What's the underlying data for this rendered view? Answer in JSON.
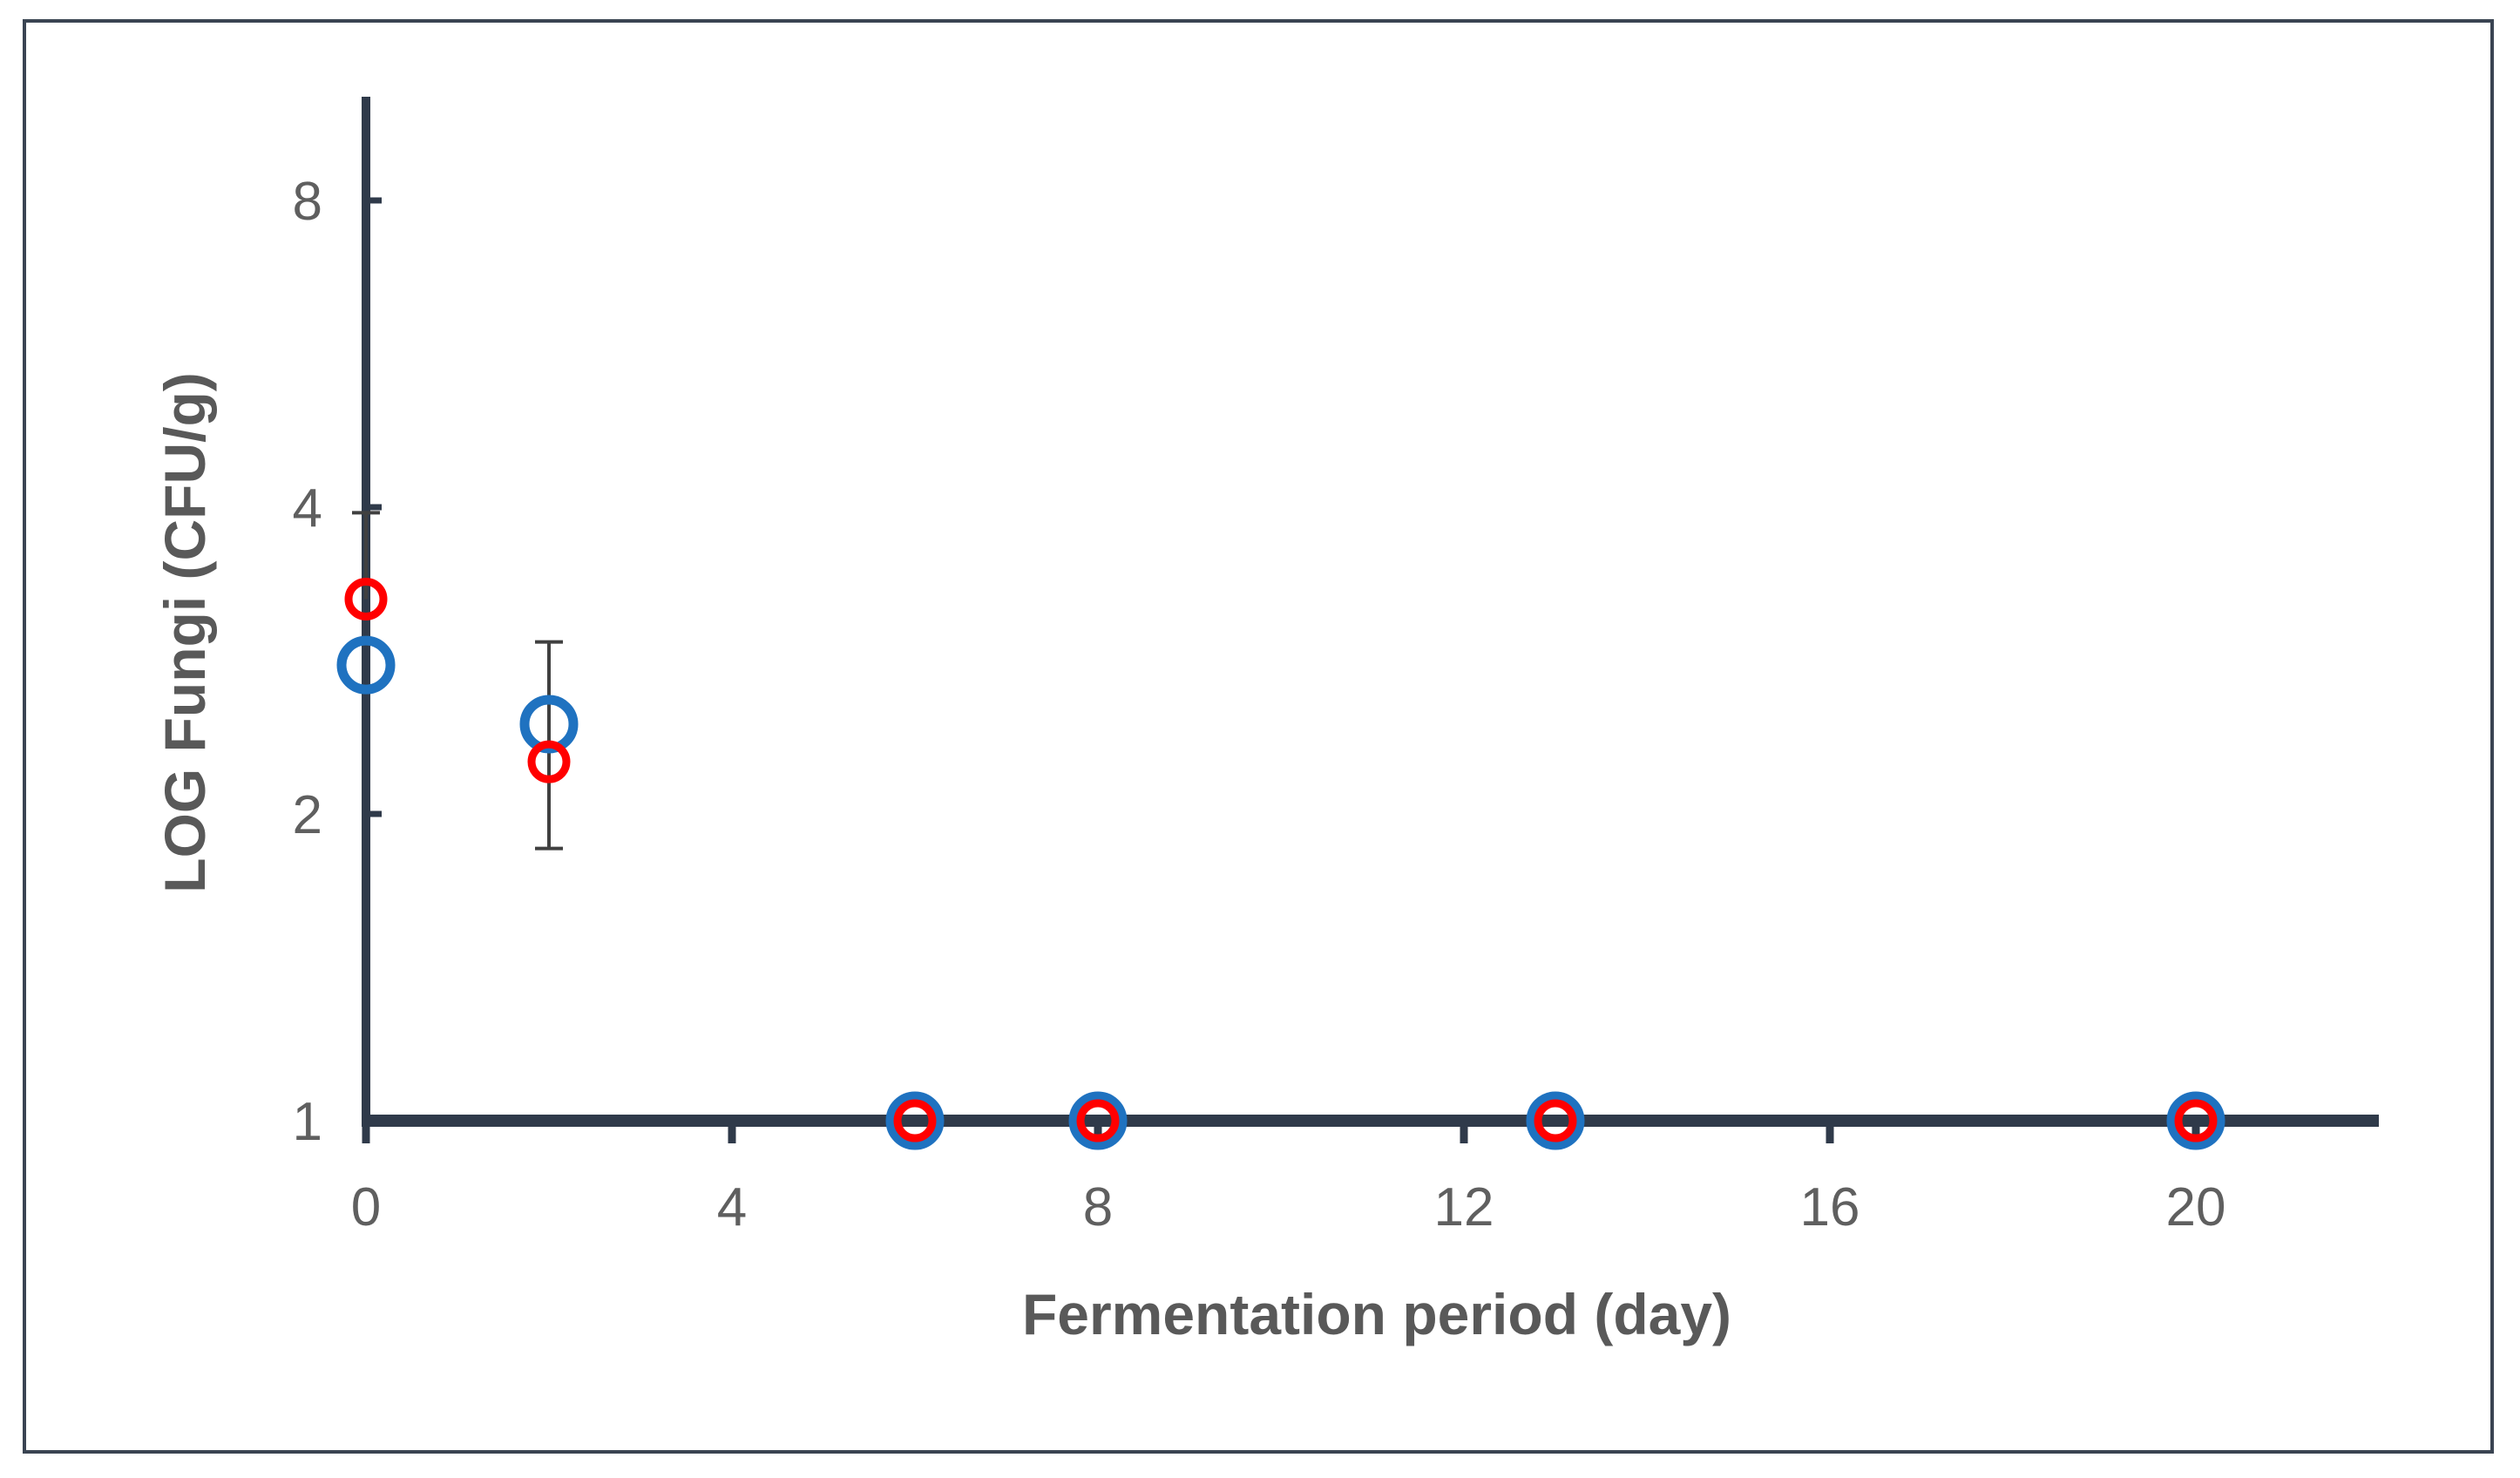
{
  "chart_data": {
    "type": "scatter",
    "title": "",
    "xlabel": "Fermentation period (day)",
    "ylabel": "LOG Fungi (CFU/g)",
    "xlim": [
      0,
      22
    ],
    "y_scale": "log2",
    "ylim": [
      1,
      9.2
    ],
    "x_ticks": [
      0,
      4,
      8,
      12,
      16,
      20
    ],
    "y_ticks": [
      1,
      2,
      4,
      8
    ],
    "x_tick_labels": [
      "0",
      "4",
      "8",
      "12",
      "16",
      "20"
    ],
    "y_tick_labels": [
      "1",
      "2",
      "4",
      "8"
    ],
    "legend": "none",
    "series": [
      {
        "name": "Series 1",
        "color": "#1f72c0",
        "marker": "open-circle-large",
        "x": [
          0,
          2,
          6,
          8,
          13,
          20
        ],
        "y": [
          2.8,
          2.45,
          1,
          1,
          1,
          1
        ],
        "error_low": [
          null,
          null,
          null,
          null,
          null,
          null
        ],
        "error_high": [
          null,
          null,
          null,
          null,
          null,
          null
        ]
      },
      {
        "name": "Series 2",
        "color": "#ff0000",
        "marker": "open-circle-small",
        "x": [
          0,
          2,
          6,
          8,
          13,
          20
        ],
        "y": [
          3.25,
          2.25,
          1,
          1,
          1,
          1
        ],
        "error_low": [
          null,
          1.85,
          null,
          null,
          null,
          null
        ],
        "error_high": [
          3.95,
          2.95,
          null,
          null,
          null,
          null
        ]
      }
    ]
  }
}
